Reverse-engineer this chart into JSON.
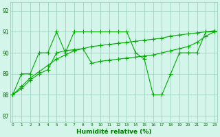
{
  "line1_x": [
    0,
    1,
    2,
    3,
    4,
    5,
    6,
    7,
    8,
    9,
    10,
    11,
    12,
    13,
    14,
    15,
    16,
    17,
    18,
    19,
    20,
    21,
    22,
    23
  ],
  "line1_y": [
    88,
    89,
    89,
    90,
    90,
    91,
    90,
    91,
    91,
    91,
    91,
    91,
    91,
    91,
    90,
    89.7,
    88,
    88,
    89,
    90,
    90,
    90,
    91,
    91
  ],
  "line2_x": [
    0,
    1,
    2,
    3,
    4,
    5,
    6,
    7,
    8,
    9,
    10,
    11,
    12,
    13,
    14,
    15,
    16,
    17,
    18,
    19,
    20,
    21,
    22,
    23
  ],
  "line2_y": [
    88.0,
    88.4,
    88.8,
    89.1,
    89.4,
    89.7,
    89.9,
    90.1,
    90.2,
    90.3,
    90.35,
    90.4,
    90.45,
    90.5,
    90.55,
    90.6,
    90.65,
    90.7,
    90.8,
    90.85,
    90.9,
    90.95,
    91.0,
    91.05
  ],
  "line3_x": [
    0,
    1,
    2,
    3,
    4,
    5,
    6,
    7,
    8,
    9,
    10,
    11,
    12,
    13,
    14,
    15,
    16,
    17,
    18,
    19,
    20,
    21,
    22,
    23
  ],
  "line3_y": [
    88.0,
    88.3,
    88.7,
    89.0,
    89.2,
    90.0,
    90.1,
    90.15,
    90.2,
    89.5,
    89.6,
    89.65,
    89.7,
    89.75,
    89.8,
    89.85,
    89.9,
    90.0,
    90.1,
    90.2,
    90.3,
    90.5,
    90.8,
    91.0
  ],
  "line_color": "#00aa00",
  "marker_color": "#00aa00",
  "bg_color": "#d4f5e9",
  "grid_color": "#99ccbb",
  "xlabel": "Humidité relative (%)",
  "xlabel_color": "#007700",
  "ytick_labels": [
    "87",
    "88",
    "89",
    "90",
    "91",
    "92"
  ],
  "ytick_vals": [
    87,
    88,
    89,
    90,
    91,
    92
  ],
  "xtick_vals": [
    0,
    1,
    2,
    3,
    4,
    5,
    6,
    7,
    8,
    9,
    10,
    11,
    12,
    13,
    14,
    15,
    16,
    17,
    18,
    19,
    20,
    21,
    22,
    23
  ],
  "xlim": [
    -0.3,
    23.3
  ],
  "ylim": [
    86.7,
    92.4
  ]
}
